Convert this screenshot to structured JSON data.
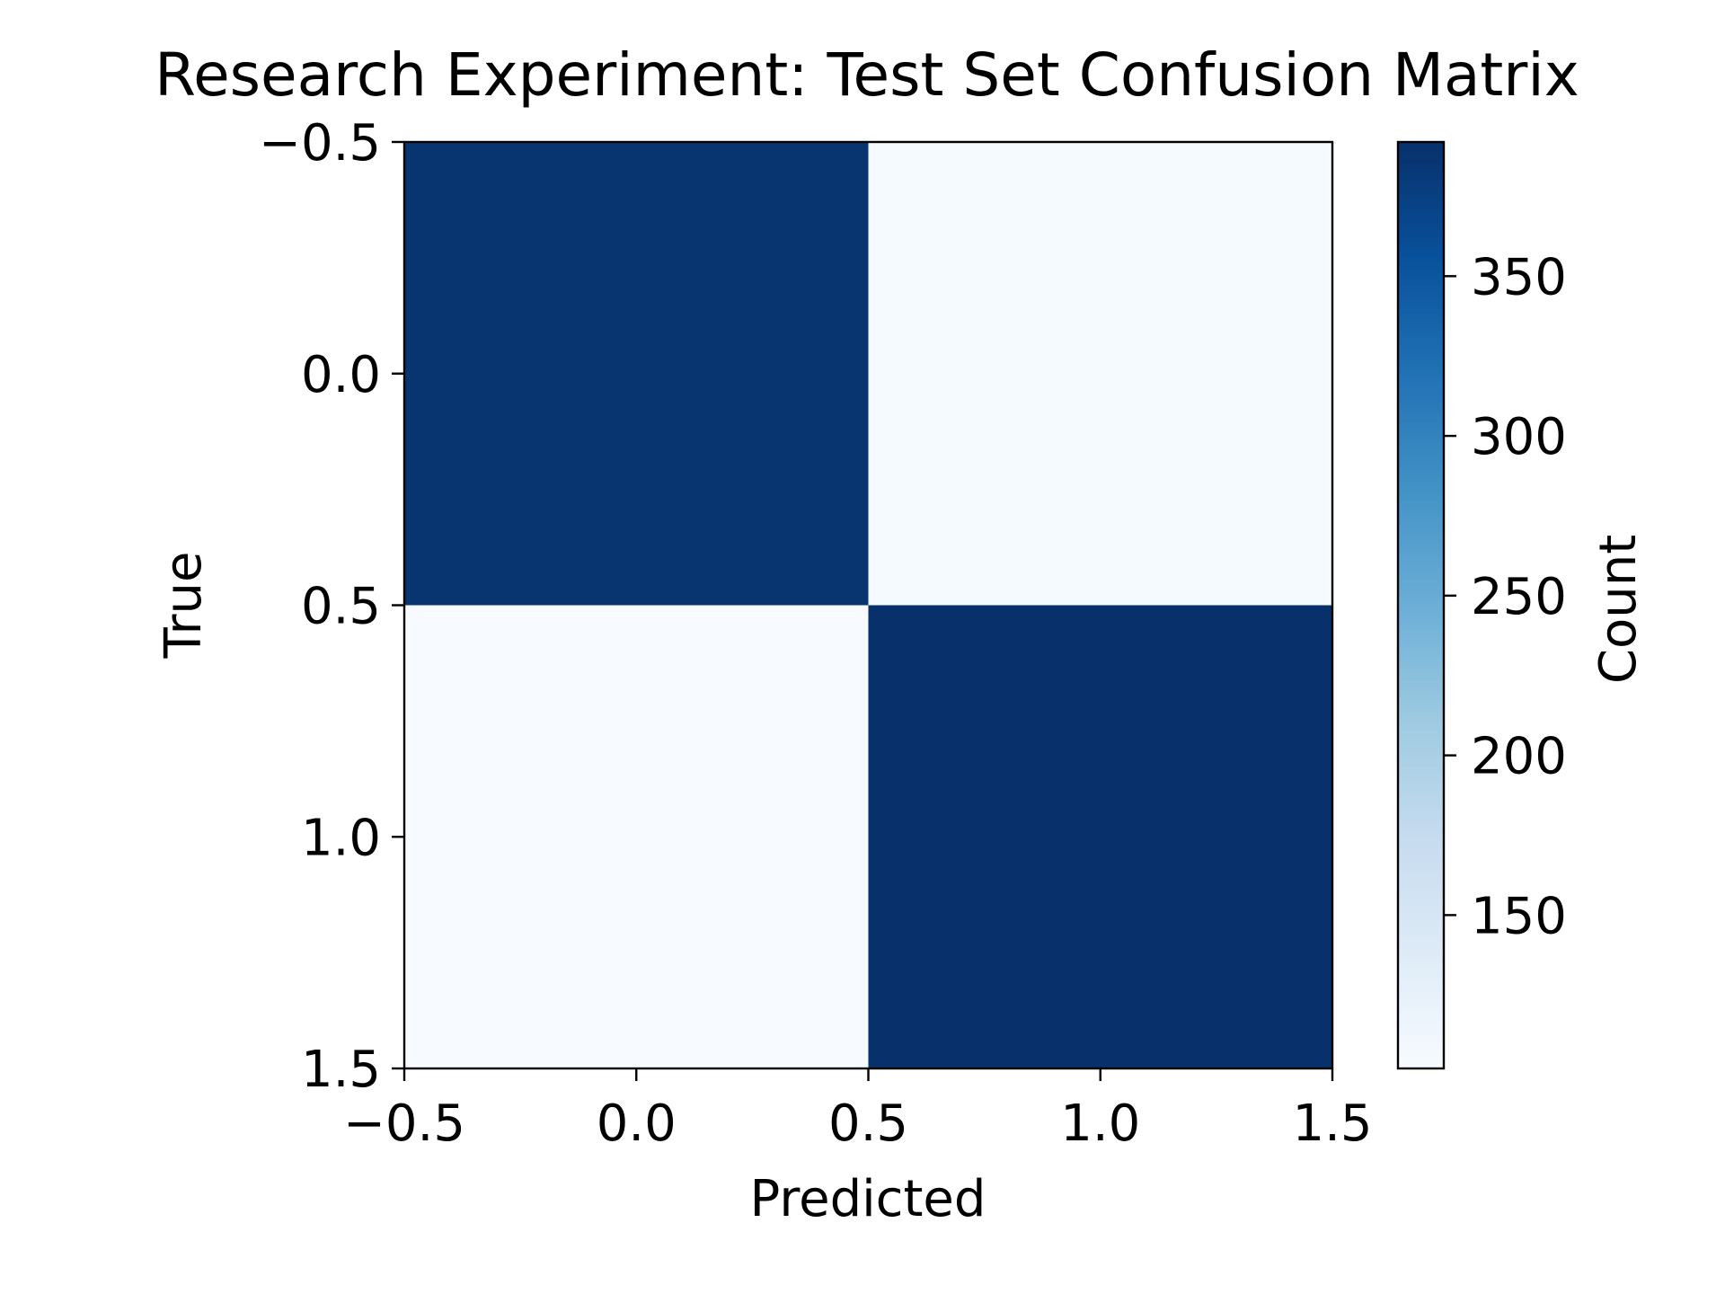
{
  "chart_data": {
    "type": "heatmap",
    "title": "Research Experiment: Test Set Confusion Matrix",
    "xlabel": "Predicted",
    "ylabel": "True",
    "matrix": [
      [
        388,
        105
      ],
      [
        102,
        392
      ]
    ],
    "xlim": [
      -0.5,
      1.5
    ],
    "ylim": [
      1.5,
      -0.5
    ],
    "x_ticks": [
      -0.5,
      0.0,
      0.5,
      1.0,
      1.5
    ],
    "x_tick_labels": [
      "−0.5",
      "0.0",
      "0.5",
      "1.0",
      "1.5"
    ],
    "y_ticks": [
      -0.5,
      0.0,
      0.5,
      1.0,
      1.5
    ],
    "y_tick_labels": [
      "−0.5",
      "0.0",
      "0.5",
      "1.0",
      "1.5"
    ],
    "colormap": "Blues",
    "colorbar": {
      "label": "Count",
      "range": [
        102,
        392
      ],
      "ticks": [
        150,
        200,
        250,
        300,
        350
      ],
      "tick_labels": [
        "150",
        "200",
        "250",
        "300",
        "350"
      ]
    },
    "grid": false
  }
}
